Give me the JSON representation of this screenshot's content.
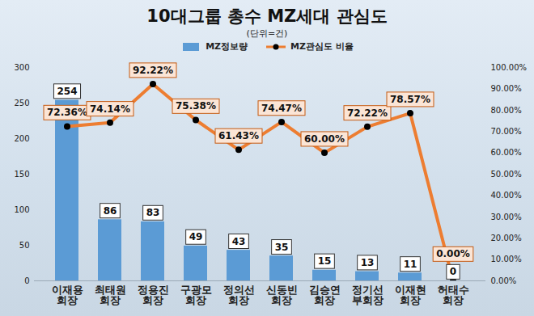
{
  "chart_data": {
    "type": "bar",
    "title": "10대그룹 총수 MZ세대 관심도",
    "subtitle": "(단위=건)",
    "categories": [
      "이재용\n회장",
      "최태원\n회장",
      "정용진\n회장",
      "구광모\n회장",
      "정의선\n회장",
      "신동빈\n회장",
      "김승연\n회장",
      "정기선\n부회장",
      "이재현\n회장",
      "허태수\n회장"
    ],
    "series": [
      {
        "name": "MZ정보량",
        "type": "bar",
        "color": "#5b9bd5",
        "values": [
          254,
          86,
          83,
          49,
          43,
          35,
          15,
          13,
          11,
          0
        ]
      },
      {
        "name": "MZ관심도 비율",
        "type": "line",
        "axis": "y2",
        "color": "#ed7d31",
        "marker": "circle",
        "values": [
          72.36,
          74.14,
          92.22,
          75.38,
          61.43,
          74.47,
          60.0,
          72.22,
          78.57,
          0.0
        ],
        "value_labels": [
          "72.36%",
          "74.14%",
          "92.22%",
          "75.38%",
          "61.43%",
          "74.47%",
          "60.00%",
          "72.22%",
          "78.57%",
          "0.00%"
        ]
      }
    ],
    "ylim": [
      0,
      300
    ],
    "yticks": [
      0,
      50,
      100,
      150,
      200,
      250,
      300
    ],
    "y2lim": [
      0,
      100
    ],
    "y2ticks": [
      {
        "value": 0,
        "label": "0.00%"
      },
      {
        "value": 10,
        "label": "10.00%"
      },
      {
        "value": 20,
        "label": "20.00%"
      },
      {
        "value": 30,
        "label": "30.00%"
      },
      {
        "value": 40,
        "label": "40.00%"
      },
      {
        "value": 50,
        "label": "50.00%"
      },
      {
        "value": 60,
        "label": "60.00%"
      },
      {
        "value": 70,
        "label": "70.00%"
      },
      {
        "value": 80,
        "label": "80.00%"
      },
      {
        "value": 90,
        "label": "90.00%"
      },
      {
        "value": 100,
        "label": "100.00%"
      }
    ],
    "data_labels": true,
    "legend": "top",
    "grid": false
  }
}
